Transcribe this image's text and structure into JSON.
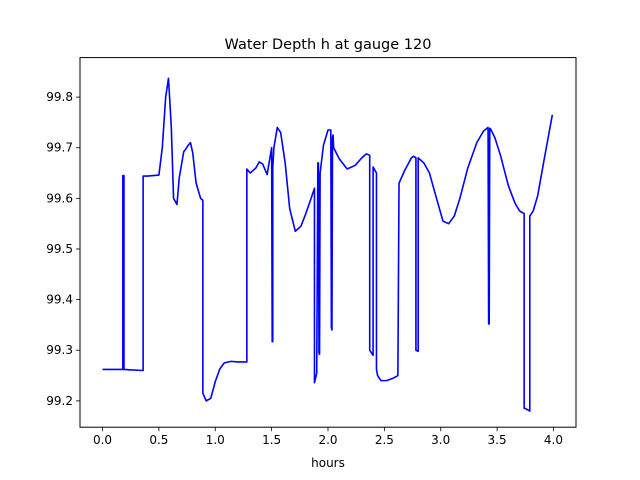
{
  "chart_data": {
    "type": "line",
    "title": "Water Depth h at gauge 120",
    "xlabel": "hours",
    "ylabel": "",
    "xlim": [
      -0.2,
      4.2
    ],
    "ylim": [
      99.148,
      99.878
    ],
    "x_ticks": [
      0.0,
      0.5,
      1.0,
      1.5,
      2.0,
      2.5,
      3.0,
      3.5,
      4.0
    ],
    "x_tick_labels": [
      "0.0",
      "0.5",
      "1.0",
      "1.5",
      "2.0",
      "2.5",
      "3.0",
      "3.5",
      "4.0"
    ],
    "y_ticks": [
      99.2,
      99.3,
      99.4,
      99.5,
      99.6,
      99.7,
      99.8
    ],
    "y_tick_labels": [
      "99.2",
      "99.3",
      "99.4",
      "99.5",
      "99.6",
      "99.7",
      "99.8"
    ],
    "grid": false,
    "legend": "none",
    "series": [
      {
        "color": "#0000ff",
        "x": [
          0.0,
          0.18,
          0.18,
          0.185,
          0.19,
          0.19,
          0.36,
          0.36,
          0.4,
          0.5,
          0.53,
          0.56,
          0.585,
          0.61,
          0.63,
          0.66,
          0.68,
          0.72,
          0.74,
          0.76,
          0.78,
          0.8,
          0.83,
          0.87,
          0.89,
          0.89,
          0.92,
          0.96,
          1.0,
          1.04,
          1.08,
          1.14,
          1.2,
          1.28,
          1.28,
          1.31,
          1.36,
          1.39,
          1.42,
          1.46,
          1.5,
          1.505,
          1.51,
          1.51,
          1.52,
          1.55,
          1.58,
          1.62,
          1.66,
          1.71,
          1.76,
          1.8,
          1.85,
          1.88,
          1.88,
          1.9,
          1.91,
          1.915,
          1.92,
          1.925,
          1.93,
          1.96,
          2.0,
          2.025,
          2.03,
          2.035,
          2.04,
          2.045,
          2.05,
          2.1,
          2.17,
          2.24,
          2.3,
          2.34,
          2.37,
          2.37,
          2.4,
          2.4,
          2.43,
          2.43,
          2.44,
          2.47,
          2.52,
          2.58,
          2.62,
          2.63,
          2.63,
          2.68,
          2.74,
          2.76,
          2.78,
          2.78,
          2.8,
          2.8,
          2.85,
          2.9,
          2.95,
          3.02,
          3.07,
          3.12,
          3.17,
          3.24,
          3.32,
          3.38,
          3.42,
          3.425,
          3.43,
          3.435,
          3.44,
          3.48,
          3.53,
          3.6,
          3.66,
          3.7,
          3.74,
          3.74,
          3.75,
          3.79,
          3.79,
          3.82,
          3.86,
          3.92,
          3.99
        ],
        "y": [
          99.262,
          99.262,
          99.645,
          99.645,
          99.645,
          99.262,
          99.26,
          99.644,
          99.644,
          99.646,
          99.7,
          99.8,
          99.837,
          99.74,
          99.6,
          99.588,
          99.64,
          99.692,
          99.698,
          99.705,
          99.71,
          99.69,
          99.63,
          99.6,
          99.596,
          99.215,
          99.2,
          99.205,
          99.238,
          99.263,
          99.275,
          99.278,
          99.277,
          99.277,
          99.658,
          99.65,
          99.66,
          99.672,
          99.668,
          99.647,
          99.7,
          99.317,
          99.317,
          99.66,
          99.7,
          99.74,
          99.73,
          99.67,
          99.58,
          99.535,
          99.545,
          99.568,
          99.6,
          99.62,
          99.236,
          99.255,
          99.67,
          99.67,
          99.295,
          99.292,
          99.65,
          99.705,
          99.735,
          99.735,
          99.345,
          99.34,
          99.72,
          99.725,
          99.7,
          99.678,
          99.658,
          99.665,
          99.68,
          99.688,
          99.685,
          99.3,
          99.29,
          99.662,
          99.65,
          99.262,
          99.25,
          99.24,
          99.24,
          99.245,
          99.25,
          99.63,
          99.63,
          99.655,
          99.68,
          99.683,
          99.68,
          99.3,
          99.298,
          99.68,
          99.67,
          99.65,
          99.61,
          99.555,
          99.55,
          99.565,
          99.6,
          99.66,
          99.71,
          99.733,
          99.74,
          99.352,
          99.352,
          99.738,
          99.738,
          99.72,
          99.685,
          99.625,
          99.59,
          99.575,
          99.57,
          99.185,
          99.185,
          99.18,
          99.565,
          99.575,
          99.605,
          99.68,
          99.765
        ]
      }
    ]
  }
}
